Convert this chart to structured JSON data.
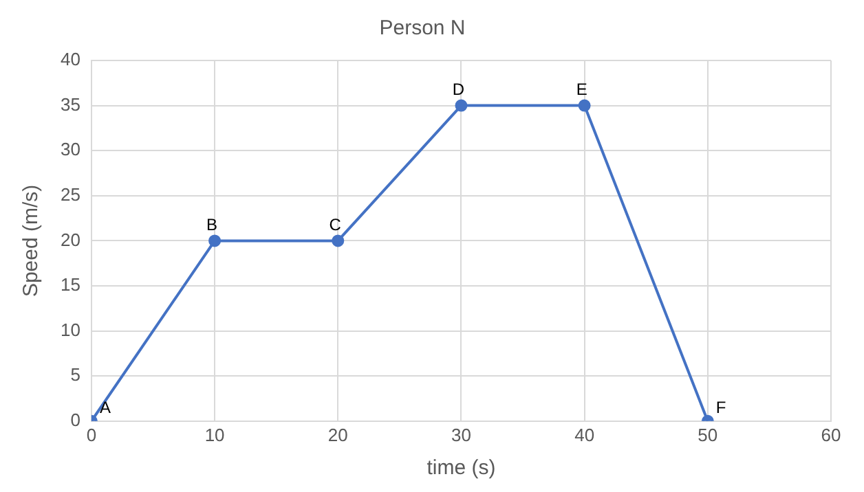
{
  "chart_data": {
    "type": "line",
    "title": "Person N",
    "xlabel": "time (s)",
    "ylabel": "Speed (m/s)",
    "x": [
      0,
      10,
      20,
      30,
      40,
      50
    ],
    "series": [
      {
        "color": "#4472c4",
        "values": [
          0,
          20,
          20,
          35,
          35,
          0
        ]
      }
    ],
    "xlim": [
      0,
      60
    ],
    "xticks": [
      0,
      10,
      20,
      30,
      40,
      50,
      60
    ],
    "ylim": [
      0,
      40
    ],
    "yticks": [
      0,
      5,
      10,
      15,
      20,
      25,
      30,
      35,
      40
    ],
    "grid": true,
    "legend": false,
    "marker": "circle",
    "line_style": "solid",
    "annotations": [
      {
        "text": "A",
        "x": 0,
        "y": 0
      },
      {
        "text": "B",
        "x": 10,
        "y": 20
      },
      {
        "text": "C",
        "x": 20,
        "y": 20
      },
      {
        "text": "D",
        "x": 30,
        "y": 35
      },
      {
        "text": "E",
        "x": 40,
        "y": 35
      },
      {
        "text": "F",
        "x": 50,
        "y": 0
      }
    ]
  }
}
